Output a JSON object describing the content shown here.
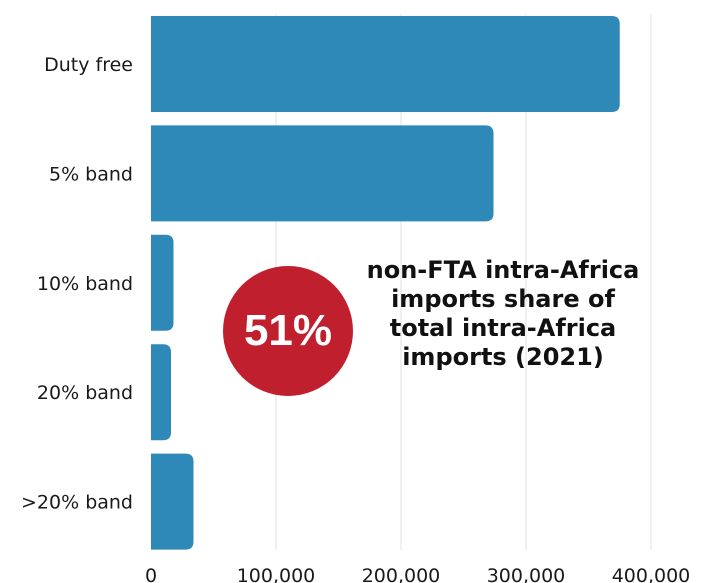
{
  "chart_data": {
    "type": "bar",
    "orientation": "horizontal",
    "categories": [
      "Duty free",
      "5% band",
      "10% band",
      "20% band",
      ">20% band"
    ],
    "values": [
      375000,
      274000,
      18000,
      16000,
      34000
    ],
    "xlim": [
      0,
      400000
    ],
    "xticks": [
      "0",
      "100,000",
      "200,000",
      "300,000",
      "400,000"
    ],
    "title": "",
    "xlabel": "",
    "ylabel": "",
    "grid": "vertical",
    "bar_color": "#2e88b8"
  },
  "callout": {
    "value": "51%",
    "color": "#c0202d",
    "text": "non-FTA intra-Africa imports share of total intra-Africa imports (2021)"
  }
}
